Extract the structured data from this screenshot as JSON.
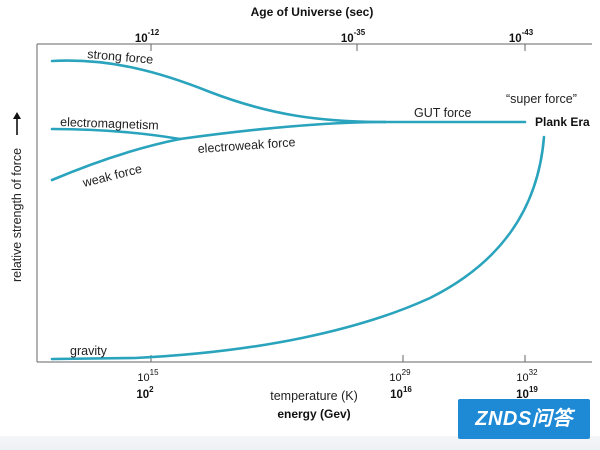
{
  "colors": {
    "curve": "#2aa3bd",
    "axis": "#666666",
    "watermark_bg": "#1e8ad6"
  },
  "top_axis": {
    "title": "Age of Universe (sec)",
    "ticks": [
      {
        "base": "10",
        "exp": "-12"
      },
      {
        "base": "10",
        "exp": "-35"
      },
      {
        "base": "10",
        "exp": "-43"
      }
    ]
  },
  "bottom_axis": {
    "temperature_label": "temperature (K)",
    "energy_label": "energy (Gev)",
    "temperature_ticks": [
      {
        "base": "10",
        "exp": "15"
      },
      {
        "base": "10",
        "exp": "29"
      },
      {
        "base": "10",
        "exp": "32"
      }
    ],
    "energy_ticks": [
      {
        "base": "10",
        "exp": "2"
      },
      {
        "base": "10",
        "exp": "16"
      },
      {
        "base": "10",
        "exp": "19"
      }
    ]
  },
  "y_axis": {
    "label": "relative strength of force",
    "arrow": "arrow-up-icon"
  },
  "forces": {
    "strong": "strong force",
    "electromagnetism": "electromagnetism",
    "weak": "weak force",
    "electroweak": "electroweak force",
    "gut": "GUT force",
    "super": "“super force”",
    "plank": "Plank Era",
    "gravity": "gravity"
  },
  "watermark": {
    "text": "ZNDS问答"
  }
}
